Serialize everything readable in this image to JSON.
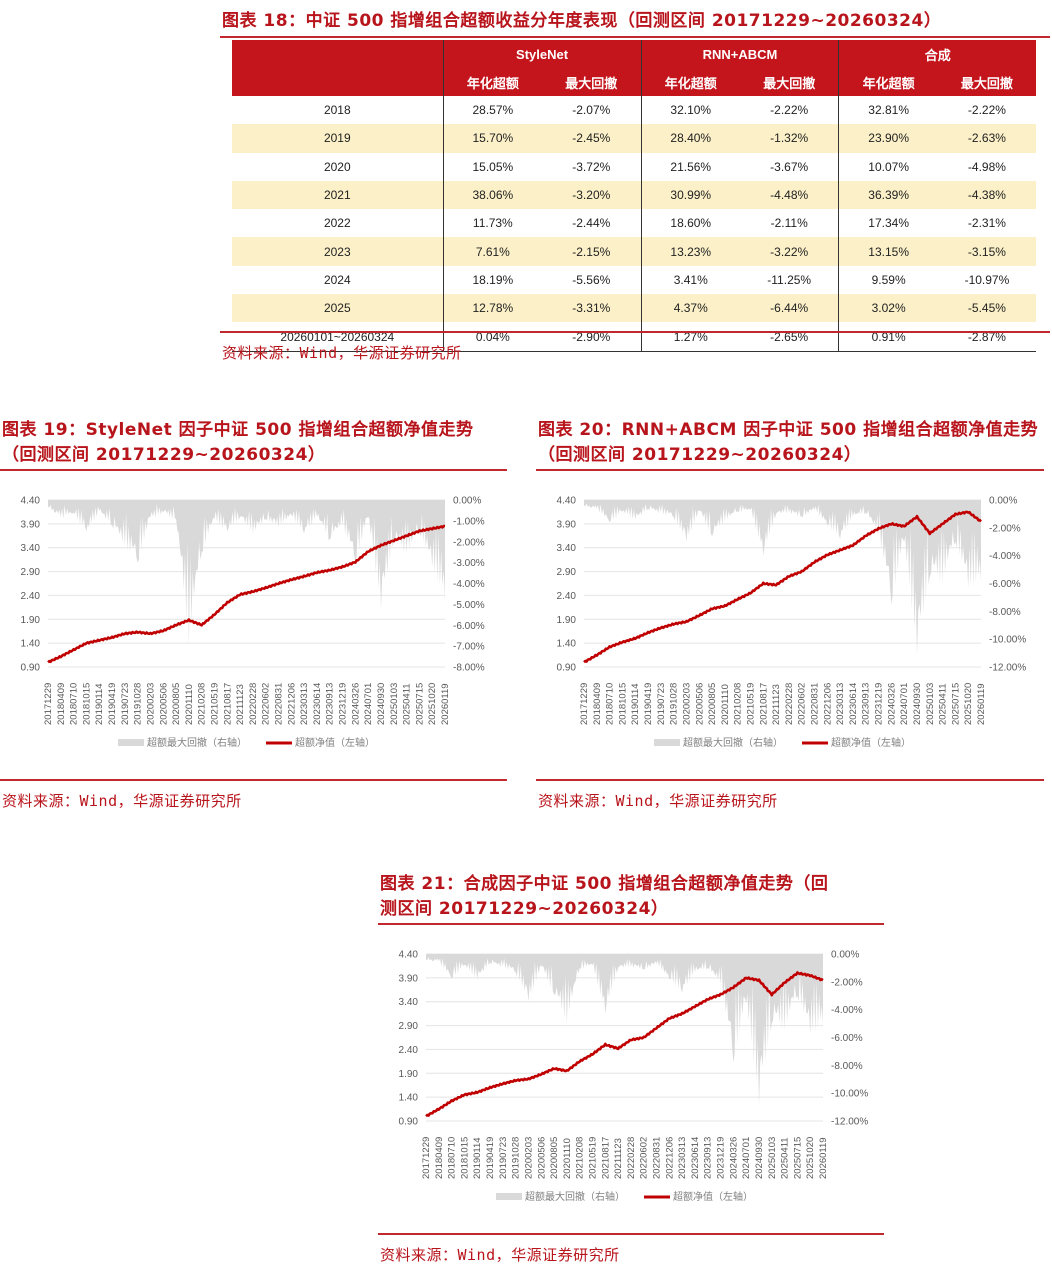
{
  "table": {
    "title": "图表 18：中证 500 指增组合超额收益分年度表现（回测区间 20171229~20260324）",
    "groups": [
      "StyleNet",
      "RNN+ABCM",
      "合成"
    ],
    "subheaders": [
      "年化超额",
      "最大回撤",
      "年化超额",
      "最大回撤",
      "年化超额",
      "最大回撤"
    ],
    "rows": [
      [
        "2018",
        "28.57%",
        "-2.07%",
        "32.10%",
        "-2.22%",
        "32.81%",
        "-2.22%"
      ],
      [
        "2019",
        "15.70%",
        "-2.45%",
        "28.40%",
        "-1.32%",
        "23.90%",
        "-2.63%"
      ],
      [
        "2020",
        "15.05%",
        "-3.72%",
        "21.56%",
        "-3.67%",
        "10.07%",
        "-4.98%"
      ],
      [
        "2021",
        "38.06%",
        "-3.20%",
        "30.99%",
        "-4.48%",
        "36.39%",
        "-4.38%"
      ],
      [
        "2022",
        "11.73%",
        "-2.44%",
        "18.60%",
        "-2.11%",
        "17.34%",
        "-2.31%"
      ],
      [
        "2023",
        "7.61%",
        "-2.15%",
        "13.23%",
        "-3.22%",
        "13.15%",
        "-3.15%"
      ],
      [
        "2024",
        "18.19%",
        "-5.56%",
        "3.41%",
        "-11.25%",
        "9.59%",
        "-10.97%"
      ],
      [
        "2025",
        "12.78%",
        "-3.31%",
        "4.37%",
        "-6.44%",
        "3.02%",
        "-5.45%"
      ],
      [
        "20260101~20260324",
        "0.04%",
        "-2.90%",
        "1.27%",
        "-2.65%",
        "0.91%",
        "-2.87%"
      ]
    ],
    "source": "资料来源：Wind，华源证券研究所"
  },
  "charts": [
    {
      "title_line1": "图表 19：StyleNet 因子中证 500 指增组合超额净值走势",
      "title_line2": "（回测区间 20171229~20260324）",
      "source": "资料来源：Wind，华源证券研究所",
      "legend_drawdown": "超额最大回撤（右轴）",
      "legend_nav": "超额净值（左轴）"
    },
    {
      "title_line1": "图表 20：RNN+ABCM 因子中证 500 指增组合超额净值走势",
      "title_line2": "（回测区间 20171229~20260324）",
      "source": "资料来源：Wind，华源证券研究所",
      "legend_drawdown": "超额最大回撤（右轴）",
      "legend_nav": "超额净值（左轴）"
    },
    {
      "title_line1": "图表 21：合成因子中证 500 指增组合超额净值走势（回",
      "title_line2": "测区间 20171229~20260324）",
      "source": "资料来源：Wind，华源证券研究所",
      "legend_drawdown": "超额最大回撤（右轴）",
      "legend_nav": "超额净值（左轴）"
    }
  ],
  "chart_data": [
    {
      "type": "table",
      "title": "图表 18：中证 500 指增组合超额收益分年度表现（回测区间 20171229~20260324）",
      "columns": [
        "年份",
        "StyleNet 年化超额",
        "StyleNet 最大回撤",
        "RNN+ABCM 年化超额",
        "RNN+ABCM 最大回撤",
        "合成 年化超额",
        "合成 最大回撤"
      ],
      "rows": [
        [
          "2018",
          28.57,
          -2.07,
          32.1,
          -2.22,
          32.81,
          -2.22
        ],
        [
          "2019",
          15.7,
          -2.45,
          28.4,
          -1.32,
          23.9,
          -2.63
        ],
        [
          "2020",
          15.05,
          -3.72,
          21.56,
          -3.67,
          10.07,
          -4.98
        ],
        [
          "2021",
          38.06,
          -3.2,
          30.99,
          -4.48,
          36.39,
          -4.38
        ],
        [
          "2022",
          11.73,
          -2.44,
          18.6,
          -2.11,
          17.34,
          -2.31
        ],
        [
          "2023",
          7.61,
          -2.15,
          13.23,
          -3.22,
          13.15,
          -3.15
        ],
        [
          "2024",
          18.19,
          -5.56,
          3.41,
          -11.25,
          9.59,
          -10.97
        ],
        [
          "2025",
          12.78,
          -3.31,
          4.37,
          -6.44,
          3.02,
          -5.45
        ],
        [
          "20260101~20260324",
          0.04,
          -2.9,
          1.27,
          -2.65,
          0.91,
          -2.87
        ]
      ]
    },
    {
      "type": "line",
      "title": "图表 19：StyleNet 因子中证 500 指增组合超额净值走势（回测区间 20171229~20260324）",
      "categories": [
        "20171229",
        "20180409",
        "20180710",
        "20181015",
        "20190114",
        "20190419",
        "20190723",
        "20191028",
        "20200203",
        "20200506",
        "20200805",
        "20201110",
        "20210208",
        "20210519",
        "20210817",
        "20211123",
        "20220228",
        "20220602",
        "20220831",
        "20221206",
        "20230313",
        "20230614",
        "20230913",
        "20231219",
        "20240326",
        "20240701",
        "20240930",
        "20250103",
        "20250411",
        "20250715",
        "20251020",
        "20260119"
      ],
      "series": [
        {
          "name": "超额净值（左轴）",
          "axis": "left",
          "type": "line",
          "color": "#c00000",
          "values": [
            1.0,
            1.12,
            1.26,
            1.4,
            1.46,
            1.52,
            1.6,
            1.63,
            1.6,
            1.66,
            1.78,
            1.88,
            1.78,
            2.0,
            2.25,
            2.42,
            2.48,
            2.56,
            2.65,
            2.73,
            2.8,
            2.88,
            2.93,
            3.0,
            3.1,
            3.32,
            3.45,
            3.55,
            3.65,
            3.75,
            3.8,
            3.85
          ]
        },
        {
          "name": "超额最大回撤（右轴）",
          "axis": "right",
          "type": "area",
          "color": "#d9d9d9",
          "values": [
            -0.3,
            -0.8,
            -0.6,
            -1.5,
            -0.5,
            -1.2,
            -2.2,
            -3.0,
            -0.8,
            -0.6,
            -0.9,
            -7.0,
            -2.5,
            -0.9,
            -1.5,
            -0.8,
            -1.6,
            -0.9,
            -1.3,
            -0.7,
            -1.6,
            -0.8,
            -1.9,
            -1.2,
            -3.0,
            -0.8,
            -5.2,
            -1.9,
            -2.6,
            -1.5,
            -3.2,
            -4.8
          ]
        }
      ],
      "ylim_left": [
        0.9,
        4.4
      ],
      "yticks_left": [
        0.9,
        1.4,
        1.9,
        2.4,
        2.9,
        3.4,
        3.9,
        4.4
      ],
      "ylim_right": [
        -8.0,
        0.0
      ],
      "yticks_right": [
        "0.00%",
        "-1.00%",
        "-2.00%",
        "-3.00%",
        "-4.00%",
        "-5.00%",
        "-6.00%",
        "-7.00%",
        "-8.00%"
      ],
      "legend": [
        "超额最大回撤（右轴）",
        "超额净值（左轴）"
      ],
      "legend_position": "bottom",
      "grid": true
    },
    {
      "type": "line",
      "title": "图表 20：RNN+ABCM 因子中证 500 指增组合超额净值走势（回测区间 20171229~20260324）",
      "categories": [
        "20171229",
        "20180409",
        "20180710",
        "20181015",
        "20190114",
        "20190419",
        "20190723",
        "20191028",
        "20200203",
        "20200506",
        "20200805",
        "20201110",
        "20210208",
        "20210519",
        "20210817",
        "20211123",
        "20220228",
        "20220602",
        "20220831",
        "20221206",
        "20230313",
        "20230614",
        "20230913",
        "20231219",
        "20240326",
        "20240701",
        "20240930",
        "20250103",
        "20250411",
        "20250715",
        "20251020",
        "20260119"
      ],
      "series": [
        {
          "name": "超额净值（左轴）",
          "axis": "left",
          "type": "line",
          "color": "#c00000",
          "values": [
            1.0,
            1.15,
            1.32,
            1.42,
            1.5,
            1.62,
            1.72,
            1.8,
            1.85,
            1.98,
            2.12,
            2.18,
            2.32,
            2.45,
            2.65,
            2.62,
            2.8,
            2.9,
            3.1,
            3.25,
            3.35,
            3.45,
            3.65,
            3.8,
            3.9,
            3.85,
            4.05,
            3.7,
            3.9,
            4.1,
            4.15,
            3.95
          ]
        },
        {
          "name": "超额最大回撤（右轴）",
          "axis": "right",
          "type": "area",
          "color": "#d9d9d9",
          "values": [
            -0.4,
            -0.6,
            -1.6,
            -0.8,
            -1.4,
            -0.6,
            -0.9,
            -1.2,
            -3.0,
            -0.8,
            -2.6,
            -1.5,
            -0.8,
            -0.7,
            -4.0,
            -1.0,
            -0.9,
            -1.2,
            -0.7,
            -1.8,
            -2.8,
            -1.2,
            -0.9,
            -2.5,
            -7.5,
            -3.0,
            -11.2,
            -5.5,
            -6.0,
            -3.0,
            -6.3,
            -5.8
          ]
        }
      ],
      "ylim_left": [
        0.9,
        4.4
      ],
      "yticks_left": [
        0.9,
        1.4,
        1.9,
        2.4,
        2.9,
        3.4,
        3.9,
        4.4
      ],
      "ylim_right": [
        -12.0,
        0.0
      ],
      "yticks_right": [
        "0.00%",
        "-2.00%",
        "-4.00%",
        "-6.00%",
        "-8.00%",
        "-10.00%",
        "-12.00%"
      ],
      "legend": [
        "超额最大回撤（右轴）",
        "超额净值（左轴）"
      ],
      "legend_position": "bottom",
      "grid": true
    },
    {
      "type": "line",
      "title": "图表 21：合成因子中证 500 指增组合超额净值走势（回测区间 20171229~20260324）",
      "categories": [
        "20171229",
        "20180409",
        "20180710",
        "20181015",
        "20190114",
        "20190419",
        "20190723",
        "20191028",
        "20200203",
        "20200506",
        "20200805",
        "20201110",
        "20210208",
        "20210519",
        "20210817",
        "20211123",
        "20220228",
        "20220602",
        "20220831",
        "20221206",
        "20230313",
        "20230614",
        "20230913",
        "20231219",
        "20240326",
        "20240701",
        "20240930",
        "20250103",
        "20250411",
        "20250715",
        "20251020",
        "20260119"
      ],
      "series": [
        {
          "name": "超额净值（左轴）",
          "axis": "left",
          "type": "line",
          "color": "#c00000",
          "values": [
            1.0,
            1.15,
            1.32,
            1.45,
            1.5,
            1.6,
            1.68,
            1.75,
            1.78,
            1.88,
            2.0,
            1.95,
            2.15,
            2.3,
            2.5,
            2.42,
            2.6,
            2.65,
            2.85,
            3.05,
            3.15,
            3.3,
            3.45,
            3.55,
            3.7,
            3.9,
            3.85,
            3.55,
            3.8,
            4.0,
            3.95,
            3.85
          ]
        },
        {
          "name": "超额最大回撤（右轴）",
          "axis": "right",
          "type": "area",
          "color": "#d9d9d9",
          "values": [
            -0.4,
            -0.5,
            -1.8,
            -0.8,
            -1.8,
            -0.6,
            -0.9,
            -1.3,
            -3.4,
            -0.9,
            -2.9,
            -5.0,
            -1.0,
            -0.8,
            -4.3,
            -1.0,
            -0.9,
            -1.1,
            -0.7,
            -1.8,
            -2.8,
            -1.3,
            -1.0,
            -2.2,
            -7.8,
            -3.5,
            -10.9,
            -5.0,
            -5.5,
            -3.0,
            -5.8,
            -5.0
          ]
        }
      ],
      "ylim_left": [
        0.9,
        4.4
      ],
      "yticks_left": [
        0.9,
        1.4,
        1.9,
        2.4,
        2.9,
        3.4,
        3.9,
        4.4
      ],
      "ylim_right": [
        -12.0,
        0.0
      ],
      "yticks_right": [
        "0.00%",
        "-2.00%",
        "-4.00%",
        "-6.00%",
        "-8.00%",
        "-10.00%",
        "-12.00%"
      ],
      "legend": [
        "超额最大回撤（右轴）",
        "超额净值（左轴）"
      ],
      "legend_position": "bottom",
      "grid": true
    }
  ]
}
